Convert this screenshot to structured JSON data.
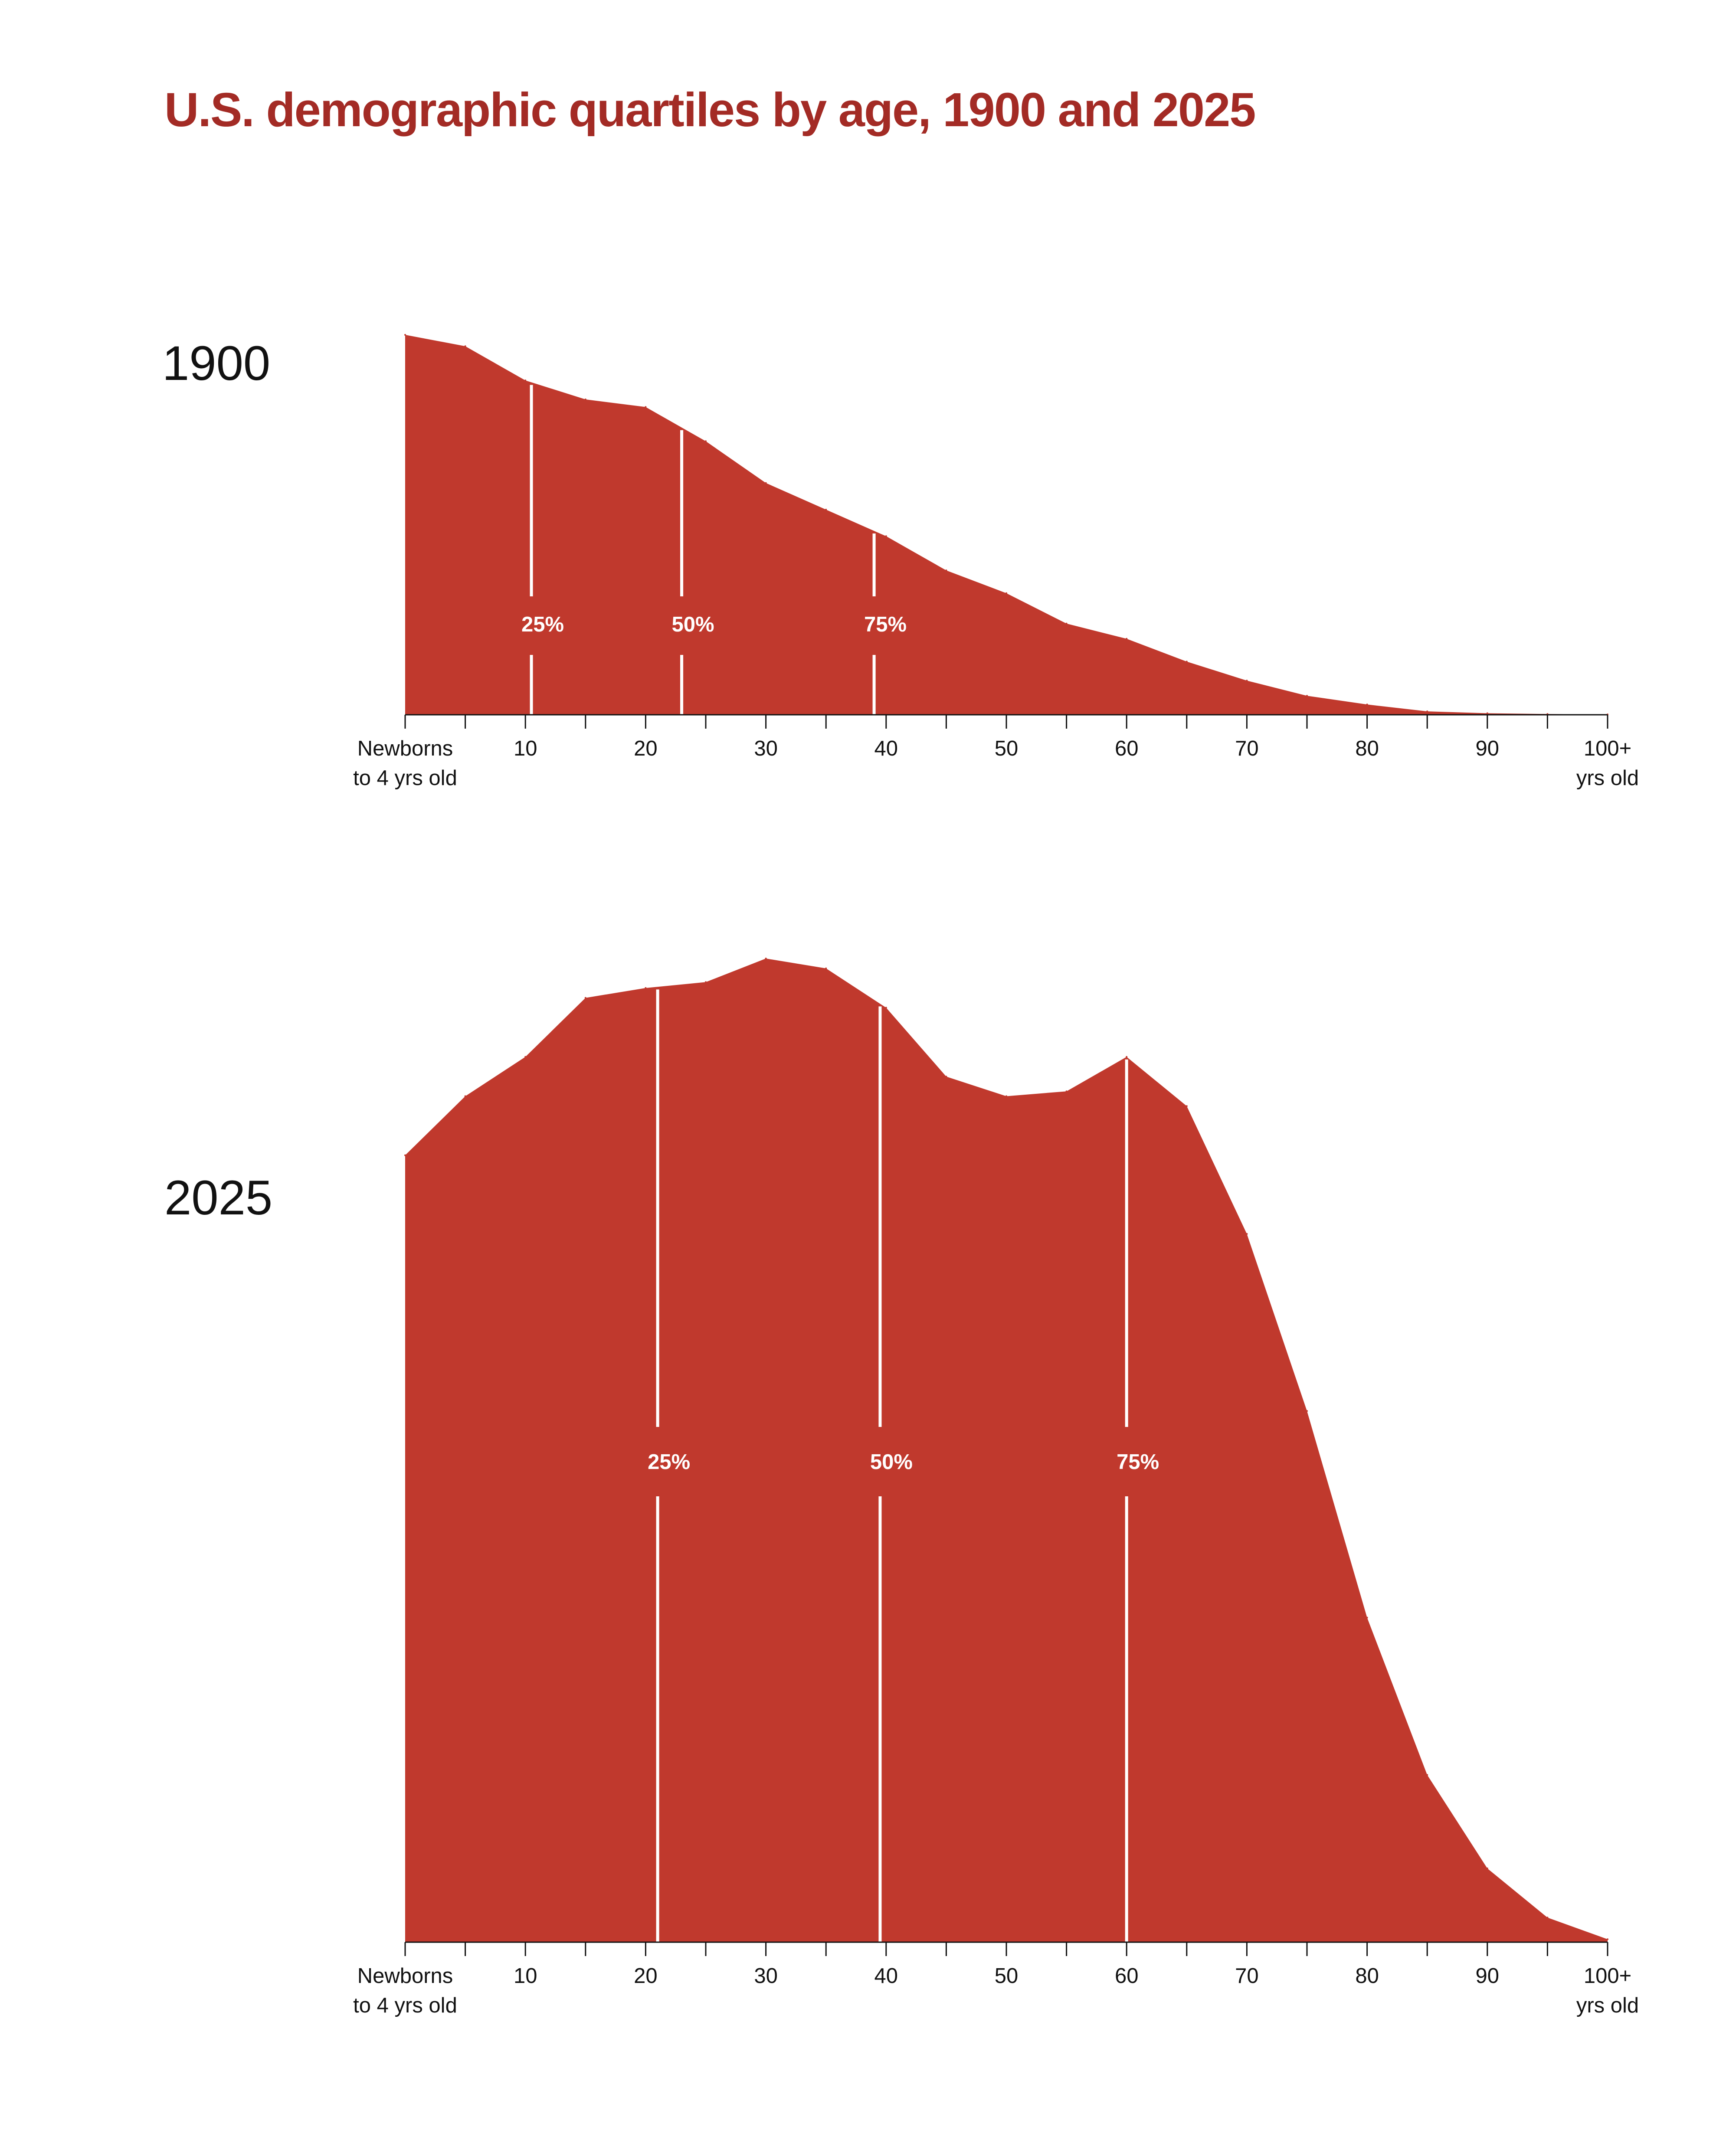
{
  "title": "U.S. demographic quartiles by age, 1900 and 2025",
  "colors": {
    "title": "#a32b25",
    "area": "#c0392d",
    "quartile_line": "#ffffff",
    "axis": "#111111"
  },
  "chart_data": [
    {
      "type": "area",
      "label": "1900",
      "x_unit": "age (years, 5-year bins)",
      "x": [
        0,
        5,
        10,
        15,
        20,
        25,
        30,
        35,
        40,
        45,
        50,
        55,
        60,
        65,
        70,
        75,
        80,
        85,
        90,
        95,
        100
      ],
      "values": [
        1.0,
        0.97,
        0.88,
        0.83,
        0.81,
        0.72,
        0.61,
        0.54,
        0.47,
        0.38,
        0.32,
        0.24,
        0.2,
        0.14,
        0.09,
        0.05,
        0.027,
        0.009,
        0.004,
        0.002,
        0.001
      ],
      "ylim": [
        0,
        1
      ],
      "quartiles": [
        {
          "label": "25%",
          "age": 10.5
        },
        {
          "label": "50%",
          "age": 23
        },
        {
          "label": "75%",
          "age": 39
        }
      ],
      "tick_labels": [
        {
          "age": 0,
          "lines": [
            "Newborns",
            "to 4 yrs old"
          ]
        },
        {
          "age": 10,
          "lines": [
            "10"
          ]
        },
        {
          "age": 20,
          "lines": [
            "20"
          ]
        },
        {
          "age": 30,
          "lines": [
            "30"
          ]
        },
        {
          "age": 40,
          "lines": [
            "40"
          ]
        },
        {
          "age": 50,
          "lines": [
            "50"
          ]
        },
        {
          "age": 60,
          "lines": [
            "60"
          ]
        },
        {
          "age": 70,
          "lines": [
            "70"
          ]
        },
        {
          "age": 80,
          "lines": [
            "80"
          ]
        },
        {
          "age": 90,
          "lines": [
            "90"
          ]
        },
        {
          "age": 100,
          "lines": [
            "100+",
            "yrs old"
          ]
        }
      ]
    },
    {
      "type": "area",
      "label": "2025",
      "x_unit": "age (years, 5-year bins)",
      "x": [
        0,
        5,
        10,
        15,
        20,
        25,
        30,
        35,
        40,
        45,
        50,
        55,
        60,
        65,
        70,
        75,
        80,
        85,
        90,
        95,
        100
      ],
      "values": [
        0.8,
        0.86,
        0.9,
        0.96,
        0.97,
        0.976,
        1.0,
        0.99,
        0.95,
        0.88,
        0.86,
        0.865,
        0.9,
        0.85,
        0.72,
        0.54,
        0.33,
        0.17,
        0.075,
        0.025,
        0.003
      ],
      "ylim": [
        0,
        1
      ],
      "quartiles": [
        {
          "label": "25%",
          "age": 21
        },
        {
          "label": "50%",
          "age": 39.5
        },
        {
          "label": "75%",
          "age": 60
        }
      ],
      "tick_labels": [
        {
          "age": 0,
          "lines": [
            "Newborns",
            "to 4 yrs old"
          ]
        },
        {
          "age": 10,
          "lines": [
            "10"
          ]
        },
        {
          "age": 20,
          "lines": [
            "20"
          ]
        },
        {
          "age": 30,
          "lines": [
            "30"
          ]
        },
        {
          "age": 40,
          "lines": [
            "40"
          ]
        },
        {
          "age": 50,
          "lines": [
            "50"
          ]
        },
        {
          "age": 60,
          "lines": [
            "60"
          ]
        },
        {
          "age": 70,
          "lines": [
            "70"
          ]
        },
        {
          "age": 80,
          "lines": [
            "80"
          ]
        },
        {
          "age": 90,
          "lines": [
            "90"
          ]
        },
        {
          "age": 100,
          "lines": [
            "100+",
            "yrs old"
          ]
        }
      ]
    }
  ]
}
